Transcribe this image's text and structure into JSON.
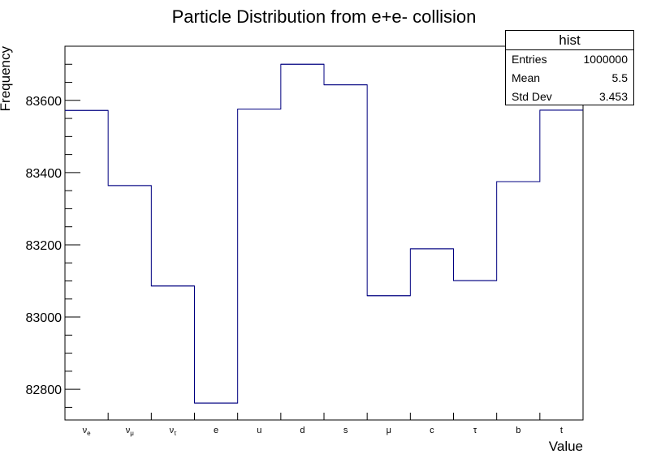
{
  "chart_data": {
    "type": "bar",
    "histogram_style": "step",
    "title": "Particle Distribution from e+e- collision",
    "xlabel": "Value",
    "ylabel": "Frequency",
    "categories": [
      {
        "base": "ν",
        "sub": "e"
      },
      {
        "base": "ν",
        "sub": "μ"
      },
      {
        "base": "ν",
        "sub": "τ"
      },
      {
        "base": "e",
        "sub": ""
      },
      {
        "base": "u",
        "sub": ""
      },
      {
        "base": "d",
        "sub": ""
      },
      {
        "base": "s",
        "sub": ""
      },
      {
        "base": "μ",
        "sub": ""
      },
      {
        "base": "c",
        "sub": ""
      },
      {
        "base": "τ",
        "sub": ""
      },
      {
        "base": "b",
        "sub": ""
      },
      {
        "base": "t",
        "sub": ""
      }
    ],
    "values": [
      83572,
      83364,
      83086,
      82762,
      83576,
      83700,
      83643,
      83059,
      83189,
      83101,
      83375,
      83573
    ],
    "ylim": [
      82715,
      83750
    ],
    "yticks_major": [
      82800,
      83000,
      83200,
      83400,
      83600
    ],
    "yticks_major_labels": [
      "82800",
      "83000",
      "83200",
      "83400",
      "83600"
    ],
    "ytick_minor_step": 50,
    "line_color": "#000080",
    "grid": false,
    "legend": "none"
  },
  "stats": {
    "name": "hist",
    "rows": [
      {
        "label": "Entries",
        "value": "1000000"
      },
      {
        "label": "Mean",
        "value": "5.5"
      },
      {
        "label": "Std Dev",
        "value": "3.453"
      }
    ]
  }
}
